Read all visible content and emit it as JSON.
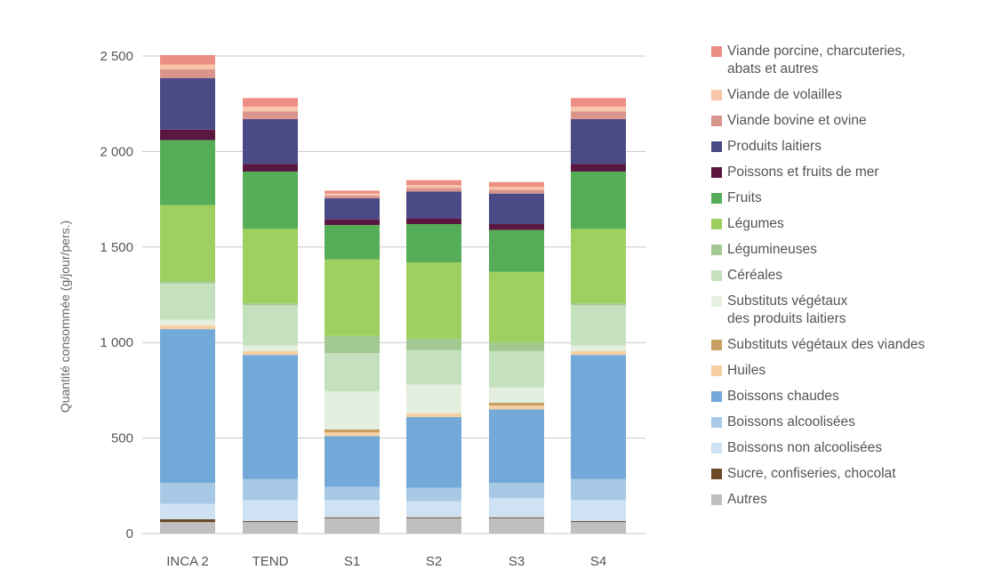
{
  "chart_data": {
    "type": "bar",
    "stacked": true,
    "ylabel": "Quantité consommée (g/jour/pers.)",
    "ylim": [
      0,
      2500
    ],
    "yticks": [
      0,
      500,
      1000,
      1500,
      2000,
      2500
    ],
    "ytick_labels": [
      "0",
      "500",
      "1 000",
      "1 500",
      "2 000",
      "2 500"
    ],
    "categories": [
      "INCA 2",
      "TEND",
      "S1",
      "S2",
      "S3",
      "S4"
    ],
    "grid": true,
    "legend_position": "right",
    "series": [
      {
        "name": "Autres",
        "color": "#bfbfbf",
        "values": [
          60,
          60,
          80,
          80,
          80,
          60
        ]
      },
      {
        "name": "Sucre, confiseries, chocolat",
        "color": "#6b4a26",
        "values": [
          15,
          5,
          5,
          5,
          5,
          5
        ]
      },
      {
        "name": "Boissons non alcoolisées",
        "color": "#cfe2f3",
        "values": [
          80,
          110,
          90,
          85,
          100,
          110
        ]
      },
      {
        "name": "Boissons alcoolisées",
        "color": "#a7c9e6",
        "values": [
          110,
          110,
          70,
          70,
          80,
          110
        ]
      },
      {
        "name": "Boissons chaudes",
        "color": "#72a9d9",
        "values": [
          805,
          650,
          265,
          370,
          385,
          650
        ]
      },
      {
        "name": "Huiles",
        "color": "#f6cfa3",
        "values": [
          20,
          20,
          20,
          20,
          20,
          20
        ]
      },
      {
        "name": "Substituts végétaux des viandes",
        "color": "#c9a063",
        "values": [
          0,
          0,
          15,
          0,
          15,
          0
        ]
      },
      {
        "name": "Substituts végétaux\ndes produits laitiers",
        "color": "#e4efe0",
        "values": [
          30,
          30,
          200,
          150,
          80,
          30
        ]
      },
      {
        "name": "Céréales",
        "color": "#c5e0bd",
        "values": [
          190,
          210,
          200,
          180,
          190,
          210
        ]
      },
      {
        "name": "Légumineuses",
        "color": "#a3c992",
        "values": [
          10,
          10,
          90,
          60,
          45,
          10
        ]
      },
      {
        "name": "Légumes",
        "color": "#9fcf5e",
        "values": [
          400,
          390,
          400,
          400,
          370,
          390
        ]
      },
      {
        "name": "Fruits",
        "color": "#55ad58",
        "values": [
          340,
          300,
          180,
          200,
          220,
          300
        ]
      },
      {
        "name": "Poissons et fruits de mer",
        "color": "#5b1740",
        "values": [
          55,
          40,
          30,
          30,
          30,
          40
        ]
      },
      {
        "name": "Produits laitiers",
        "color": "#4a4a86",
        "values": [
          270,
          235,
          110,
          140,
          160,
          235
        ]
      },
      {
        "name": "Viande bovine et ovine",
        "color": "#d9948b",
        "values": [
          45,
          40,
          15,
          20,
          20,
          40
        ]
      },
      {
        "name": "Viande de volailles",
        "color": "#f7c5a8",
        "values": [
          25,
          25,
          10,
          15,
          15,
          25
        ]
      },
      {
        "name": "Viande porcine, charcuteries,\nabats et autres",
        "color": "#ec8e83",
        "values": [
          50,
          45,
          15,
          25,
          25,
          45
        ]
      }
    ]
  }
}
